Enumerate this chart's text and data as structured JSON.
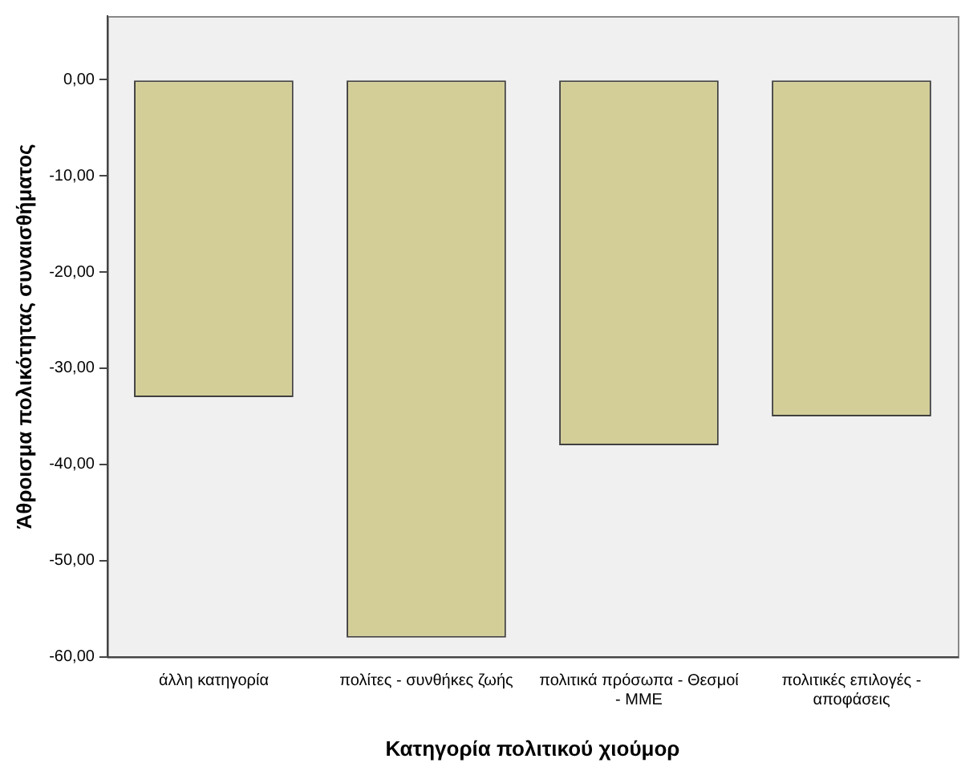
{
  "chart_data": {
    "type": "bar",
    "xlabel": "Κατηγορία πολιτικού χιούμορ",
    "ylabel": "Άθροισμα πολικότητας συναισθήματος",
    "categories": [
      "άλλη κατηγορία",
      "πολίτες - συνθήκες ζωής",
      "πολιτικά πρόσωπα - Θεσμοί - ΜΜΕ",
      "πολιτικές επιλογές - αποφάσεις"
    ],
    "values": [
      -33,
      -58,
      -38,
      -35
    ],
    "color": "#d3ce97",
    "ylim": [
      -60,
      6.6
    ],
    "yticks": [
      {
        "value": 0,
        "label": "0,00"
      },
      {
        "value": -10,
        "label": "-10,00"
      },
      {
        "value": -20,
        "label": "-20,00"
      },
      {
        "value": -30,
        "label": "-30,00"
      },
      {
        "value": -40,
        "label": "-40,00"
      },
      {
        "value": -50,
        "label": "-50,00"
      },
      {
        "value": -60,
        "label": "-60,00"
      }
    ],
    "grid": false,
    "legend": false
  }
}
